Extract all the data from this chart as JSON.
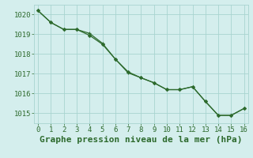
{
  "line1_x": [
    0,
    1,
    2,
    3,
    4,
    5,
    6,
    7,
    8,
    9,
    10,
    11,
    12,
    13,
    14,
    15,
    16
  ],
  "line1_y": [
    1020.2,
    1019.6,
    1019.25,
    1019.25,
    1019.0,
    1018.55,
    1017.75,
    1017.05,
    1016.8,
    1016.55,
    1016.2,
    1016.2,
    1016.35,
    1015.6,
    1014.9,
    1014.9,
    1015.25
  ],
  "line2_x": [
    0,
    1,
    2,
    3,
    4,
    5,
    6,
    7,
    8,
    9,
    10,
    11,
    12,
    13,
    14,
    15,
    16
  ],
  "line2_y": [
    1020.2,
    1019.6,
    1019.25,
    1019.25,
    1019.0,
    1018.55,
    1017.75,
    1017.1,
    1016.8,
    1016.55,
    1016.2,
    1016.2,
    1016.35,
    1015.6,
    1014.9,
    1014.9,
    1015.25
  ],
  "line_color": "#2d6a2d",
  "bg_color": "#d4eeed",
  "grid_color": "#a8d4d0",
  "xlabel": "Graphe pression niveau de la mer (hPa)",
  "xlabel_fontsize": 8,
  "ylim": [
    1014.5,
    1020.5
  ],
  "xlim": [
    -0.3,
    16.3
  ],
  "yticks": [
    1015,
    1016,
    1017,
    1018,
    1019,
    1020
  ],
  "xticks": [
    0,
    1,
    2,
    3,
    4,
    5,
    6,
    7,
    8,
    9,
    10,
    11,
    12,
    13,
    14,
    15,
    16
  ],
  "tick_fontsize": 6.5
}
